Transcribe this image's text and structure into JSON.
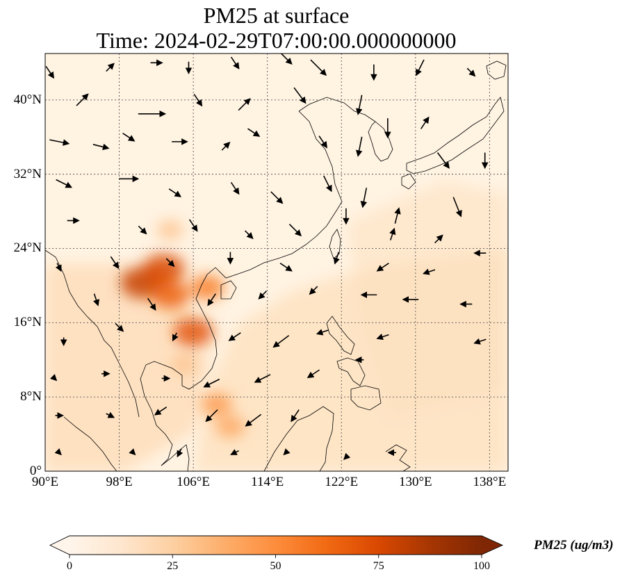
{
  "title": {
    "line1": "PM25 at surface",
    "line2": "Time: 2024-02-29T07:00:00.000000000"
  },
  "map": {
    "extent": {
      "lon_min": 90,
      "lon_max": 140,
      "lat_min": 0,
      "lat_max": 45
    },
    "lon_ticks": [
      {
        "value": 90,
        "label": "90°E"
      },
      {
        "value": 98,
        "label": "98°E"
      },
      {
        "value": 106,
        "label": "106°E"
      },
      {
        "value": 114,
        "label": "114°E"
      },
      {
        "value": 122,
        "label": "122°E"
      },
      {
        "value": 130,
        "label": "130°E"
      },
      {
        "value": 138,
        "label": "138°E"
      }
    ],
    "lat_ticks": [
      {
        "value": 0,
        "label": "0°"
      },
      {
        "value": 8,
        "label": "8°N"
      },
      {
        "value": 16,
        "label": "16°N"
      },
      {
        "value": 24,
        "label": "24°N"
      },
      {
        "value": 32,
        "label": "32°N"
      },
      {
        "value": 40,
        "label": "40°N"
      }
    ],
    "gridlines": true,
    "background_color": "#fff3e2",
    "coastline_color": "#000000"
  },
  "colorbar": {
    "label": "PM25 (ug/m$^3$)",
    "label_display": "PM25 (ug/m3)",
    "vmin": 0,
    "vmax": 100,
    "extend": "both",
    "ticks": [
      {
        "value": 0,
        "label": "0"
      },
      {
        "value": 25,
        "label": "25"
      },
      {
        "value": 50,
        "label": "50"
      },
      {
        "value": 75,
        "label": "75"
      },
      {
        "value": 100,
        "label": "100"
      }
    ],
    "colormap": [
      "#fff5eb",
      "#fee6ce",
      "#fdd0a2",
      "#fdae6b",
      "#fd8d3c",
      "#f16913",
      "#d94801",
      "#a63603",
      "#7f2704"
    ]
  },
  "pollution_hotspots": [
    {
      "lon": 100.5,
      "lat": 20.3,
      "pm25": 80
    },
    {
      "lon": 102.8,
      "lat": 21.8,
      "pm25": 75
    },
    {
      "lon": 103.5,
      "lat": 19.0,
      "pm25": 65
    },
    {
      "lon": 106.0,
      "lat": 15.0,
      "pm25": 70
    },
    {
      "lon": 107.5,
      "lat": 19.8,
      "pm25": 55
    },
    {
      "lon": 108.5,
      "lat": 7.2,
      "pm25": 45
    },
    {
      "lon": 110.0,
      "lat": 4.8,
      "pm25": 40
    },
    {
      "lon": 105.0,
      "lat": 11.5,
      "pm25": 30
    },
    {
      "lon": 103.5,
      "lat": 26.0,
      "pm25": 30
    }
  ],
  "wind_vectors": [
    {
      "lon": 90.5,
      "lat": 43.0,
      "u": 2,
      "v": -3
    },
    {
      "lon": 97.0,
      "lat": 43.5,
      "u": 2,
      "v": 2
    },
    {
      "lon": 102.0,
      "lat": 44.0,
      "u": 3,
      "v": 0
    },
    {
      "lon": 105.5,
      "lat": 43.5,
      "u": 0,
      "v": -3
    },
    {
      "lon": 110.5,
      "lat": 44.0,
      "u": 2,
      "v": -3
    },
    {
      "lon": 116.0,
      "lat": 44.5,
      "u": 3,
      "v": -3
    },
    {
      "lon": 119.5,
      "lat": 43.5,
      "u": 4,
      "v": -4
    },
    {
      "lon": 125.5,
      "lat": 43.0,
      "u": 0,
      "v": -4
    },
    {
      "lon": 130.5,
      "lat": 43.5,
      "u": -2,
      "v": -4
    },
    {
      "lon": 136.0,
      "lat": 43.0,
      "u": 2,
      "v": -2
    },
    {
      "lon": 94.0,
      "lat": 40.0,
      "u": 3,
      "v": 3
    },
    {
      "lon": 101.5,
      "lat": 38.5,
      "u": 7,
      "v": 0
    },
    {
      "lon": 106.5,
      "lat": 40.0,
      "u": 2,
      "v": -3
    },
    {
      "lon": 111.5,
      "lat": 39.5,
      "u": 3,
      "v": 3
    },
    {
      "lon": 117.5,
      "lat": 40.5,
      "u": 3,
      "v": -4
    },
    {
      "lon": 124.0,
      "lat": 39.5,
      "u": -1,
      "v": -5
    },
    {
      "lon": 127.0,
      "lat": 37.0,
      "u": 0,
      "v": -5
    },
    {
      "lon": 131.0,
      "lat": 37.5,
      "u": 2,
      "v": 3
    },
    {
      "lon": 91.5,
      "lat": 35.5,
      "u": 5,
      "v": -1
    },
    {
      "lon": 96.0,
      "lat": 35.0,
      "u": 4,
      "v": -1
    },
    {
      "lon": 99.0,
      "lat": 36.0,
      "u": 3,
      "v": -2
    },
    {
      "lon": 104.5,
      "lat": 35.5,
      "u": 4,
      "v": 0
    },
    {
      "lon": 109.5,
      "lat": 35.0,
      "u": 2,
      "v": 2
    },
    {
      "lon": 112.5,
      "lat": 36.5,
      "u": 3,
      "v": -2
    },
    {
      "lon": 120.0,
      "lat": 35.5,
      "u": 2,
      "v": -3
    },
    {
      "lon": 124.0,
      "lat": 35.0,
      "u": -1,
      "v": -5
    },
    {
      "lon": 133.0,
      "lat": 33.5,
      "u": 3,
      "v": -4
    },
    {
      "lon": 137.5,
      "lat": 33.5,
      "u": 0,
      "v": -4
    },
    {
      "lon": 92.0,
      "lat": 31.0,
      "u": 4,
      "v": -2
    },
    {
      "lon": 99.0,
      "lat": 31.5,
      "u": 5,
      "v": 0
    },
    {
      "lon": 104.0,
      "lat": 30.0,
      "u": 3,
      "v": -2
    },
    {
      "lon": 110.5,
      "lat": 30.5,
      "u": 2,
      "v": -3
    },
    {
      "lon": 115.0,
      "lat": 29.5,
      "u": 3,
      "v": -3
    },
    {
      "lon": 120.5,
      "lat": 31.0,
      "u": 2,
      "v": -4
    },
    {
      "lon": 124.5,
      "lat": 29.5,
      "u": -1,
      "v": -5
    },
    {
      "lon": 128.0,
      "lat": 27.5,
      "u": 1,
      "v": 4
    },
    {
      "lon": 134.5,
      "lat": 28.5,
      "u": 2,
      "v": -5
    },
    {
      "lon": 93.0,
      "lat": 27.0,
      "u": 3,
      "v": 0
    },
    {
      "lon": 100.5,
      "lat": 26.0,
      "u": 2,
      "v": -2
    },
    {
      "lon": 106.0,
      "lat": 26.5,
      "u": 2,
      "v": -3
    },
    {
      "lon": 112.0,
      "lat": 25.5,
      "u": 2,
      "v": -2
    },
    {
      "lon": 117.0,
      "lat": 26.0,
      "u": 3,
      "v": -3
    },
    {
      "lon": 122.5,
      "lat": 27.5,
      "u": 0,
      "v": -4
    },
    {
      "lon": 127.5,
      "lat": 25.5,
      "u": 1,
      "v": 3
    },
    {
      "lon": 132.5,
      "lat": 25.0,
      "u": 2,
      "v": 2
    },
    {
      "lon": 91.5,
      "lat": 22.0,
      "u": 1,
      "v": -2
    },
    {
      "lon": 97.5,
      "lat": 22.5,
      "u": 2,
      "v": -3
    },
    {
      "lon": 103.5,
      "lat": 22.5,
      "u": 2,
      "v": -2
    },
    {
      "lon": 110.0,
      "lat": 23.0,
      "u": 0,
      "v": -3
    },
    {
      "lon": 116.0,
      "lat": 22.0,
      "u": 3,
      "v": -2
    },
    {
      "lon": 121.5,
      "lat": 23.0,
      "u": -1,
      "v": -3
    },
    {
      "lon": 126.5,
      "lat": 22.0,
      "u": -3,
      "v": -2
    },
    {
      "lon": 131.5,
      "lat": 21.5,
      "u": -3,
      "v": -1
    },
    {
      "lon": 137.0,
      "lat": 23.5,
      "u": -3,
      "v": 0
    },
    {
      "lon": 95.5,
      "lat": 18.5,
      "u": 1,
      "v": -3
    },
    {
      "lon": 101.5,
      "lat": 18.0,
      "u": 2,
      "v": -3
    },
    {
      "lon": 108.0,
      "lat": 18.5,
      "u": -2,
      "v": -3
    },
    {
      "lon": 113.5,
      "lat": 19.0,
      "u": -2,
      "v": -2
    },
    {
      "lon": 119.0,
      "lat": 19.5,
      "u": -2,
      "v": -2
    },
    {
      "lon": 125.0,
      "lat": 19.0,
      "u": -4,
      "v": 0
    },
    {
      "lon": 129.5,
      "lat": 18.5,
      "u": -4,
      "v": 0
    },
    {
      "lon": 135.5,
      "lat": 18.0,
      "u": -3,
      "v": 0
    },
    {
      "lon": 92.0,
      "lat": 14.0,
      "u": 0,
      "v": -2
    },
    {
      "lon": 98.0,
      "lat": 15.5,
      "u": 2,
      "v": -2
    },
    {
      "lon": 104.0,
      "lat": 14.5,
      "u": -1,
      "v": -2
    },
    {
      "lon": 110.5,
      "lat": 14.5,
      "u": -3,
      "v": -2
    },
    {
      "lon": 115.5,
      "lat": 14.0,
      "u": -4,
      "v": -3
    },
    {
      "lon": 120.0,
      "lat": 15.0,
      "u": -3,
      "v": -1
    },
    {
      "lon": 126.5,
      "lat": 14.5,
      "u": -3,
      "v": -1
    },
    {
      "lon": 137.0,
      "lat": 14.0,
      "u": -3,
      "v": -1
    },
    {
      "lon": 91.0,
      "lat": 10.0,
      "u": 1,
      "v": -1
    },
    {
      "lon": 96.5,
      "lat": 10.5,
      "u": 2,
      "v": 0
    },
    {
      "lon": 103.0,
      "lat": 10.0,
      "u": 2,
      "v": 0
    },
    {
      "lon": 108.0,
      "lat": 9.5,
      "u": -4,
      "v": -2
    },
    {
      "lon": 113.5,
      "lat": 10.0,
      "u": -4,
      "v": -2
    },
    {
      "lon": 119.0,
      "lat": 10.5,
      "u": -3,
      "v": -2
    },
    {
      "lon": 124.0,
      "lat": 12.0,
      "u": -2,
      "v": 0
    },
    {
      "lon": 91.5,
      "lat": 6.0,
      "u": 2,
      "v": 0
    },
    {
      "lon": 97.0,
      "lat": 6.0,
      "u": 2,
      "v": -1
    },
    {
      "lon": 102.5,
      "lat": 6.5,
      "u": -3,
      "v": -2
    },
    {
      "lon": 108.0,
      "lat": 6.0,
      "u": -3,
      "v": -3
    },
    {
      "lon": 112.5,
      "lat": 5.5,
      "u": -4,
      "v": -3
    },
    {
      "lon": 117.0,
      "lat": 6.0,
      "u": -2,
      "v": -3
    },
    {
      "lon": 91.5,
      "lat": 2.0,
      "u": 1,
      "v": -1
    },
    {
      "lon": 99.5,
      "lat": 2.0,
      "u": 1,
      "v": -1
    },
    {
      "lon": 104.5,
      "lat": 2.0,
      "u": -1,
      "v": -2
    },
    {
      "lon": 110.5,
      "lat": 2.0,
      "u": -2,
      "v": -1
    },
    {
      "lon": 116.0,
      "lat": 2.0,
      "u": -1,
      "v": -1
    },
    {
      "lon": 122.5,
      "lat": 1.5,
      "u": -1,
      "v": -1
    },
    {
      "lon": 127.5,
      "lat": 2.0,
      "u": -2,
      "v": 0
    }
  ]
}
